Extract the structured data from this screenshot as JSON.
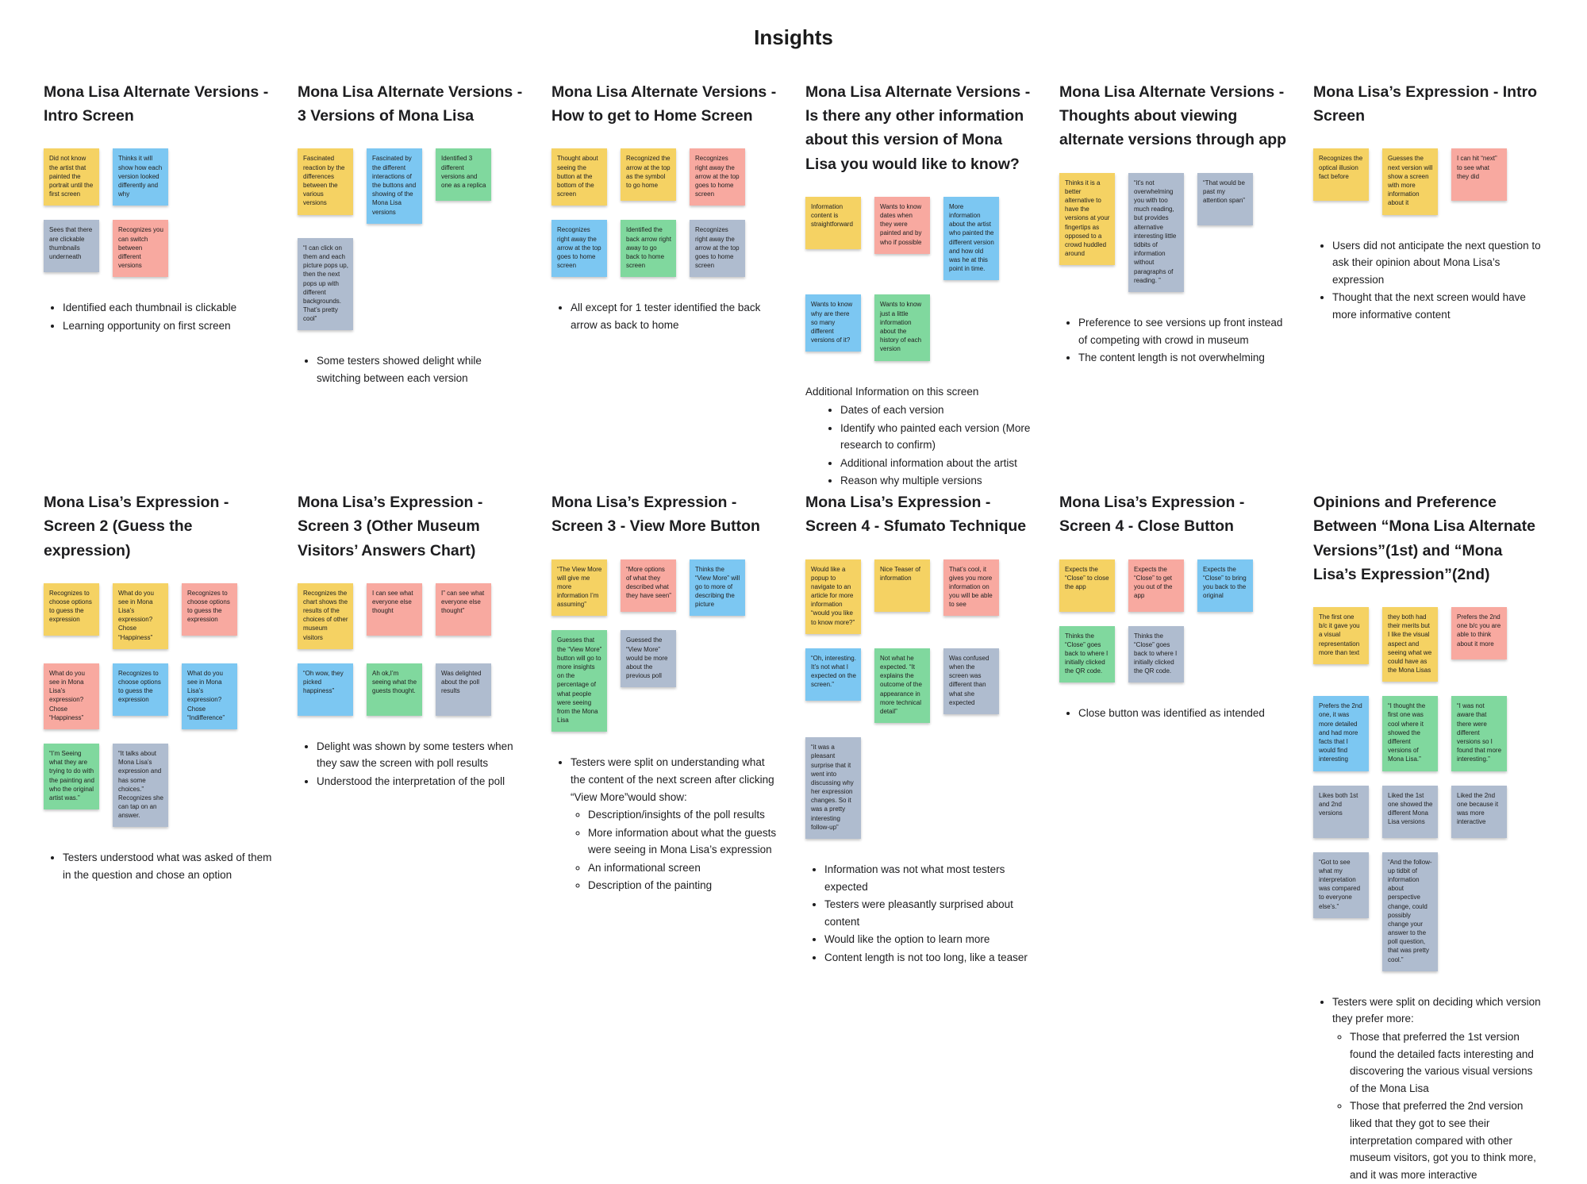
{
  "board_title": "Insights",
  "colors": {
    "note_yellow": "#F5D263",
    "note_blue": "#7CC7F2",
    "note_green": "#80D89E",
    "note_red": "#F8A9A0",
    "note_gray": "#AFBCCF",
    "background": "#FFFFFF",
    "text": "#1D1D1F"
  },
  "sections": [
    {
      "title": "Mona Lisa Alternate Versions - Intro Screen",
      "note_rows": [
        [
          {
            "color": "yellow",
            "text": "Did not know the artist that painted the portrait until the first screen"
          },
          {
            "color": "blue",
            "text": "Thinks  it will show how each version looked differently and why"
          }
        ],
        [
          {
            "color": "gray",
            "text": "Sees that there are clickable thumbnails underneath"
          },
          {
            "color": "red",
            "text": "Recognizes you can switch between different versions"
          }
        ]
      ],
      "summary": {
        "items": [
          {
            "text": "Identified each thumbnail is clickable"
          },
          {
            "text": "Learning opportunity on first screen"
          }
        ]
      }
    },
    {
      "title": "Mona Lisa Alternate Versions - 3 Versions of Mona Lisa",
      "note_rows": [
        [
          {
            "color": "yellow",
            "text": "Fascinated reaction by the differences between the various versions"
          },
          {
            "color": "blue",
            "text": "Fascinated by the different interactions of the buttons and showing of the Mona Lisa versions"
          },
          {
            "color": "green",
            "text": "Identified 3 different versions and one as a replica"
          }
        ],
        [
          {
            "color": "gray",
            "text": "“I can click on them and each picture pops up, then the next pops up with different backgrounds. That’s pretty cool”"
          }
        ]
      ],
      "summary": {
        "items": [
          {
            "text": "Some testers showed delight while switching between each version"
          }
        ]
      }
    },
    {
      "title": "Mona Lisa Alternate Versions - How to get to Home Screen",
      "note_rows": [
        [
          {
            "color": "yellow",
            "text": "Thought about seeing the button at the bottom of the screen"
          },
          {
            "color": "yellow",
            "text": "Recognized the arrow at the top as the symbol to go home"
          },
          {
            "color": "red",
            "text": "Recognizes right away the arrow at the top goes to home screen"
          }
        ],
        [
          {
            "color": "blue",
            "text": "Recognizes right away the arrow at the top goes to home screen"
          },
          {
            "color": "green",
            "text": "Identified the back arrow right away to go back to home screen"
          },
          {
            "color": "gray",
            "text": "Recognizes right away the arrow at the top goes to home screen"
          }
        ]
      ],
      "summary": {
        "items": [
          {
            "text": "All except for 1 tester identified the back arrow as back to home"
          }
        ]
      }
    },
    {
      "title": "Mona Lisa Alternate Versions - Is there any other information about this version of Mona Lisa you would like to know?",
      "note_rows": [
        [
          {
            "color": "yellow",
            "text": "Information content is straightforward"
          },
          {
            "color": "red",
            "text": "Wants to know dates when they were painted and by who if possible"
          },
          {
            "color": "blue",
            "text": "More information about the artist who painted the different version and how old was he at this point in time."
          }
        ],
        [
          {
            "color": "blue",
            "text": "Wants to know why are there so many different versions of it?"
          },
          {
            "color": "green",
            "text": "Wants to know just a little information about the history of each version"
          }
        ]
      ],
      "summary": {
        "lead": "Additional Information on this screen",
        "items": [
          {
            "text": "Dates of each version"
          },
          {
            "text": "Identify who painted each version (More research to confirm)"
          },
          {
            "text": "Additional information about the artist"
          },
          {
            "text": "Reason why multiple versions"
          }
        ]
      }
    },
    {
      "title": "Mona Lisa Alternate Versions - Thoughts about viewing alternate versions through app",
      "note_rows": [
        [
          {
            "color": "yellow",
            "text": "Thinks it is a better alternative to have the versions at your fingertips as opposed to a crowd huddled around"
          },
          {
            "color": "gray",
            "text": "“it’s not overwhelming you with too much reading, but provides alternative interesting little tidbits of information without paragraphs of reading. ”"
          },
          {
            "color": "gray",
            "text": "“That would be past my attention span”"
          }
        ]
      ],
      "summary": {
        "items": [
          {
            "text": "Preference to see versions up front instead of competing with crowd in museum"
          },
          {
            "text": "The content length is not overwhelming"
          }
        ]
      }
    },
    {
      "title": "Mona Lisa’s Expression - Intro Screen",
      "note_rows": [
        [
          {
            "color": "yellow",
            "text": "Recognizes the optical illusion fact before"
          },
          {
            "color": "yellow",
            "text": "Guesses the next version will show a screen with more information about it"
          },
          {
            "color": "red",
            "text": "I can hit “next” to see what they did"
          }
        ]
      ],
      "summary": {
        "items": [
          {
            "text": "Users did not anticipate the next question to ask their opinion about Mona Lisa’s expression"
          },
          {
            "text": "Thought that the next screen would have more informative content"
          }
        ]
      }
    },
    {
      "title": "Mona Lisa’s Expression - Screen 2 (Guess the expression)",
      "note_rows": [
        [
          {
            "color": "yellow",
            "text": "Recognizes to choose options to guess the expression"
          },
          {
            "color": "yellow",
            "text": "What do you see in Mona Lisa’s expression? Chose “Happiness”"
          },
          {
            "color": "red",
            "text": "Recognizes to choose options to guess the expression"
          }
        ],
        [
          {
            "color": "red",
            "text": "What do you see in Mona Lisa’s expression? Chose “Happiness”"
          },
          {
            "color": "blue",
            "text": "Recognizes to choose options to guess the expression"
          },
          {
            "color": "blue",
            "text": "What do you see in Mona Lisa’s expression? Chose “Indifference”"
          }
        ],
        [
          {
            "color": "green",
            "text": "“I’m Seeing what they are trying to do with the painting and who the original artist was.”"
          },
          {
            "color": "gray",
            "text": "“It talks about Mona Lisa’s expression and has some choices.” Recognizes she can tap on an answer."
          }
        ]
      ],
      "summary": {
        "items": [
          {
            "text": "Testers understood what was asked of them in the question and chose an option"
          }
        ]
      }
    },
    {
      "title": "Mona Lisa’s Expression - Screen 3 (Other Museum Visitors’ Answers Chart)",
      "note_rows": [
        [
          {
            "color": "yellow",
            "text": "Recognizes the chart shows the results of the choices of other museum visitors"
          },
          {
            "color": "red",
            "text": "I can see what everyone else thought"
          },
          {
            "color": "red",
            "text": "I” can see what everyone else thought”"
          }
        ],
        [
          {
            "color": "blue",
            "text": "“Oh wow, they picked happiness”"
          },
          {
            "color": "green",
            "text": "Ah ok,I’m seeing what the guests thought."
          },
          {
            "color": "gray",
            "text": "Was delighted about the poll results"
          }
        ]
      ],
      "summary": {
        "items": [
          {
            "text": "Delight was shown by some testers when they saw the screen with poll results"
          },
          {
            "text": "Understood the interpretation of the poll"
          }
        ]
      }
    },
    {
      "title": "Mona Lisa’s Expression - Screen 3 - View More Button",
      "note_rows": [
        [
          {
            "color": "yellow",
            "text": "“The View More will give me more information I’m assuming”"
          },
          {
            "color": "red",
            "text": "“More options of what they described what they have seen”"
          },
          {
            "color": "blue",
            "text": "Thinks the “View More” will go to more of describing the picture"
          }
        ],
        [
          {
            "color": "green",
            "text": "Guesses that the “View More” button will go to more insights on the percentage of what people were seeing from the Mona Lisa"
          },
          {
            "color": "gray",
            "text": "Guessed the “View More” would be more about the previous poll"
          }
        ]
      ],
      "summary": {
        "items": [
          {
            "text": "Testers were split on understanding what the content of the next screen after clicking “View More”would show:",
            "sub": [
              "Description/insights of the poll results",
              "More information about what the guests were seeing in Mona Lisa’s expression",
              "An informational screen",
              "Description of the painting"
            ]
          }
        ]
      }
    },
    {
      "title": "Mona Lisa’s Expression - Screen 4 - Sfumato Technique",
      "note_rows": [
        [
          {
            "color": "yellow",
            "text": "Would like a popup to navigate to an article for more information “would you like to know more?”"
          },
          {
            "color": "yellow",
            "text": "Nice Teaser of information"
          },
          {
            "color": "red",
            "text": "That’s cool, it gives you more information on you will be able to see"
          }
        ],
        [
          {
            "color": "blue",
            "text": "“Oh, interesting. It’s not what I expected on the screen.”"
          },
          {
            "color": "green",
            "text": "Not what he expected. “It explains the outcome of the appearance in more technical detail”"
          },
          {
            "color": "gray",
            "text": "Was confused when the screen was different than what she expected"
          }
        ],
        [
          {
            "color": "gray",
            "text": "“it was a pleasant surprise that it went into discussing why her expression changes. So it was a pretty interesting follow-up”"
          }
        ]
      ],
      "summary": {
        "items": [
          {
            "text": "Information was not what most testers expected"
          },
          {
            "text": "Testers were pleasantly surprised about content"
          },
          {
            "text": "Would like the option to learn more"
          },
          {
            "text": "Content length is not too long, like a teaser"
          }
        ]
      }
    },
    {
      "title": "Mona Lisa’s Expression - Screen 4 - Close Button",
      "note_rows": [
        [
          {
            "color": "yellow",
            "text": "Expects the “Close” to close the app"
          },
          {
            "color": "red",
            "text": "Expects the “Close” to get you out of the app"
          },
          {
            "color": "blue",
            "text": "Expects the “Close” to bring you back to the original"
          }
        ],
        [
          {
            "color": "green",
            "text": "Thinks the “Close” goes back to where I initially clicked the QR code."
          },
          {
            "color": "gray",
            "text": "Thinks the “Close” goes back to where I initially clicked the QR code."
          }
        ]
      ],
      "summary": {
        "items": [
          {
            "text": "Close button was identified as intended"
          }
        ]
      }
    },
    {
      "title": "Opinions and Preference Between “Mona Lisa Alternate Versions”(1st) and “Mona Lisa’s Expression”(2nd)",
      "note_rows": [
        [
          {
            "color": "yellow",
            "text": "The first one b/c it gave you a visual representation more than text"
          },
          {
            "color": "yellow",
            "text": "they both had their merits but I like the visual aspect and seeing what we could have as the Mona Lisas"
          },
          {
            "color": "red",
            "text": "Prefers the 2nd one  b/c you are able to think about it more"
          }
        ],
        [
          {
            "color": "blue",
            "text": "Prefers the 2nd one, it was more detailed and had more facts that I would find interesting"
          },
          {
            "color": "green",
            "text": "“I thought the first one was cool where it showed the different versions of Mona Lisa.”"
          },
          {
            "color": "green",
            "text": "“I was not aware that there were different versions so I found that more interesting.”"
          }
        ],
        [
          {
            "color": "gray",
            "text": "Likes both 1st and 2nd versions"
          },
          {
            "color": "gray",
            "text": "Liked the 1st one showed the different Mona Lisa versions"
          },
          {
            "color": "gray",
            "text": "Liked the 2nd one because it was more interactive"
          }
        ],
        [
          {
            "color": "gray",
            "text": "“Got to see what my interpretation was compared to everyone else’s.”"
          },
          {
            "color": "gray",
            "text": "“And the follow-up tidbit of information about perspective change, could possibly change your answer to the poll question, that was pretty cool.”"
          }
        ]
      ],
      "summary": {
        "items": [
          {
            "text": "Testers were split on deciding which version they prefer more:",
            "sub": [
              "Those that preferred the 1st version found the detailed  facts interesting and discovering the various visual versions of the Mona Lisa",
              "Those that preferred the 2nd version liked that they got to see their interpretation compared with other museum visitors, got you to think more, and it was more interactive"
            ]
          }
        ]
      }
    }
  ]
}
